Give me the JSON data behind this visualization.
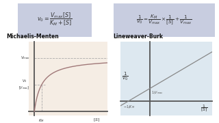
{
  "title_mm": "Michaelis-Menten",
  "title_lb": "Lineweaver-Burk",
  "bg_color_mm": "#f5ede4",
  "bg_color_lb": "#dde8f0",
  "formula_box_color": "#c8cde0",
  "curve_color": "#a07878",
  "axis_color": "#555555",
  "dashed_color": "#aaaaaa",
  "lb_line_color": "#888888",
  "label_color": "#333333",
  "Km": 1.0,
  "Vmax": 2.0,
  "S_max": 10.0,
  "xlim_mm": [
    -0.8,
    10.0
  ],
  "ylim_mm": [
    -0.15,
    2.6
  ],
  "xlim_lb": [
    -1.4,
    3.0
  ],
  "ylim_lb": [
    -0.6,
    2.4
  ]
}
